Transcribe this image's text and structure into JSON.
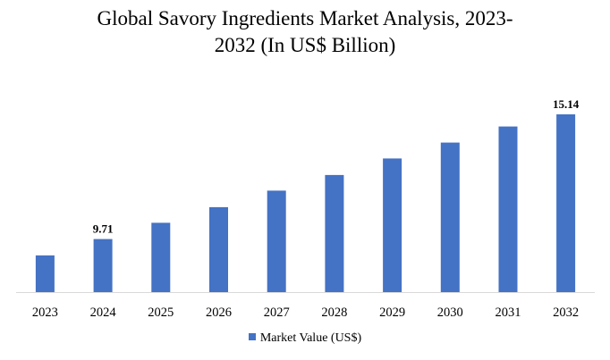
{
  "chart_data": {
    "type": "bar",
    "title_line1": "Global Savory Ingredients Market Analysis, 2023-",
    "title_line2": "2032 (In US$ Billion)",
    "categories": [
      "2023",
      "2024",
      "2025",
      "2026",
      "2027",
      "2028",
      "2029",
      "2030",
      "2031",
      "2032"
    ],
    "series": [
      {
        "name": "Market Value (US$)",
        "values": [
          9.0,
          9.71,
          10.42,
          11.1,
          11.82,
          12.5,
          13.22,
          13.91,
          14.61,
          15.14
        ],
        "data_labels": [
          "",
          "9.71",
          "",
          "",
          "",
          "",
          "",
          "",
          "",
          "15.14"
        ]
      }
    ],
    "ylim": [
      7.4,
      15.14
    ],
    "xlabel": "",
    "ylabel": "",
    "grid": false,
    "legend": "bottom",
    "bar_color": "#4472c4"
  }
}
